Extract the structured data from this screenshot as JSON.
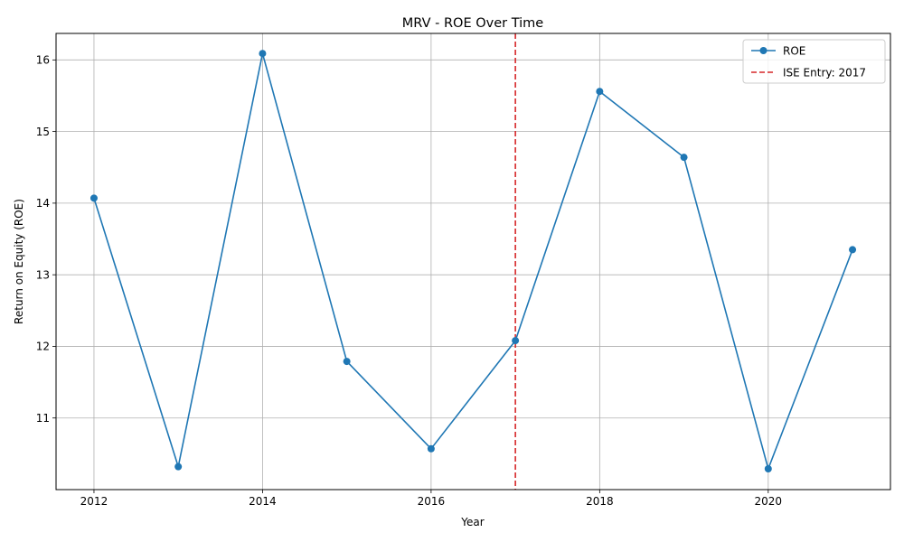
{
  "chart_data": {
    "type": "line",
    "title": "MRV - ROE Over Time",
    "xlabel": "Year",
    "ylabel": "Return on Equity (ROE)",
    "xlim": [
      2011.55,
      2021.45
    ],
    "ylim": [
      10.0,
      16.37
    ],
    "x_ticks": [
      2012,
      2014,
      2016,
      2018,
      2020
    ],
    "x_tick_labels": [
      "2012",
      "2014",
      "2016",
      "2018",
      "2020"
    ],
    "y_ticks": [
      11,
      12,
      13,
      14,
      15,
      16
    ],
    "y_tick_labels": [
      "11",
      "12",
      "13",
      "14",
      "15",
      "16"
    ],
    "grid": true,
    "legend_position": "top-right",
    "series": [
      {
        "name": "ROE",
        "color": "#1f77b4",
        "marker": "circle",
        "x": [
          2012,
          2013,
          2014,
          2015,
          2016,
          2017,
          2018,
          2019,
          2020,
          2021
        ],
        "y": [
          14.07,
          10.32,
          16.09,
          11.79,
          10.57,
          12.08,
          15.56,
          14.64,
          10.29,
          13.35
        ]
      }
    ],
    "vlines": [
      {
        "name": "ISE Entry: 2017",
        "x": 2017,
        "color": "#d62728",
        "style": "dashed"
      }
    ]
  }
}
